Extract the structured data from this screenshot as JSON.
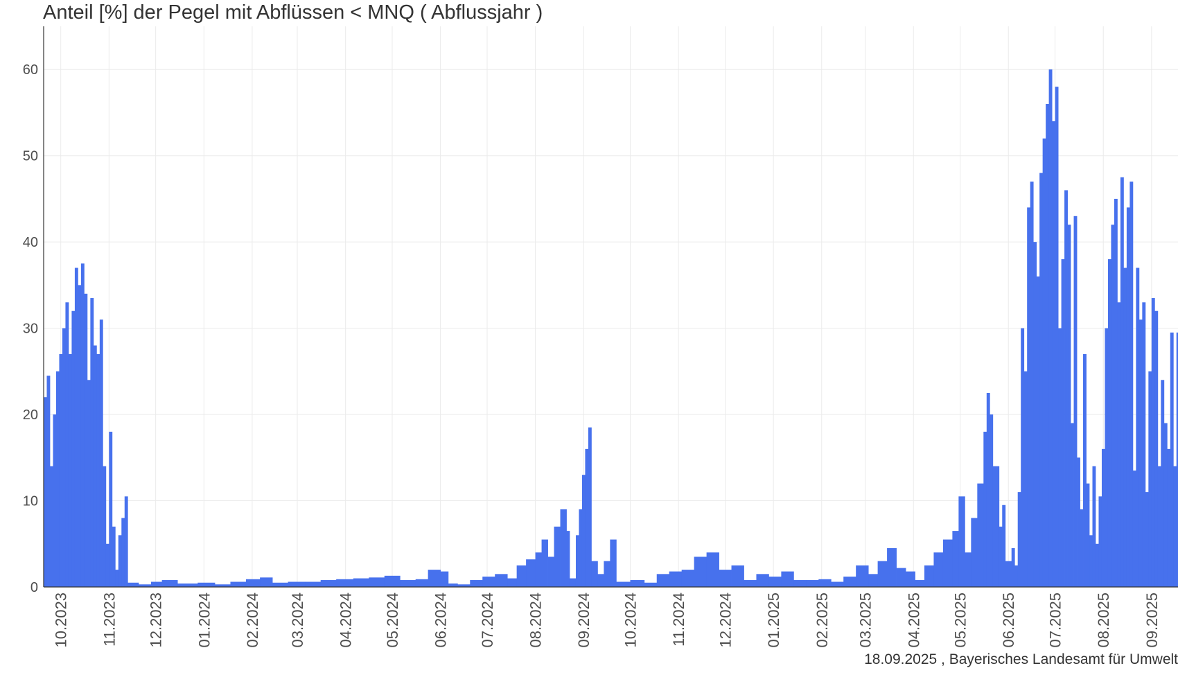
{
  "chart_data": {
    "type": "bar",
    "title": "Anteil [%] der Pegel mit Abflüssen < MNQ ( Abflussjahr )",
    "xlabel": "",
    "ylabel": "",
    "caption": "18.09.2025 , Bayerisches Landesamt für Umwelt",
    "x_range": [
      "2023-09-20",
      "2025-09-18"
    ],
    "ylim": [
      0,
      65
    ],
    "yticks": [
      0,
      10,
      20,
      30,
      40,
      50,
      60
    ],
    "grid": true,
    "legend": "none",
    "bar_color": "#4771ED",
    "xtick_labels": [
      "10.2023",
      "11.2023",
      "12.2023",
      "01.2024",
      "02.2024",
      "03.2024",
      "04.2024",
      "05.2024",
      "06.2024",
      "07.2024",
      "08.2024",
      "09.2024",
      "10.2024",
      "11.2024",
      "12.2024",
      "01.2025",
      "02.2025",
      "03.2025",
      "04.2025",
      "05.2025",
      "06.2025",
      "07.2025",
      "08.2025",
      "09.2025"
    ],
    "xtick_dates": [
      "2023-10-01",
      "2023-11-01",
      "2023-12-01",
      "2024-01-01",
      "2024-02-01",
      "2024-03-01",
      "2024-04-01",
      "2024-05-01",
      "2024-06-01",
      "2024-07-01",
      "2024-08-01",
      "2024-09-01",
      "2024-10-01",
      "2024-11-01",
      "2024-12-01",
      "2025-01-01",
      "2025-02-01",
      "2025-03-01",
      "2025-04-01",
      "2025-05-01",
      "2025-06-01",
      "2025-07-01",
      "2025-08-01",
      "2025-09-01"
    ],
    "series": [
      {
        "values": [
          {
            "date": "2023-09-20",
            "value": 22
          },
          {
            "date": "2023-09-22",
            "value": 24.5
          },
          {
            "date": "2023-09-24",
            "value": 14
          },
          {
            "date": "2023-09-26",
            "value": 20
          },
          {
            "date": "2023-09-28",
            "value": 25
          },
          {
            "date": "2023-09-30",
            "value": 27
          },
          {
            "date": "2023-10-02",
            "value": 30
          },
          {
            "date": "2023-10-04",
            "value": 33
          },
          {
            "date": "2023-10-06",
            "value": 27
          },
          {
            "date": "2023-10-08",
            "value": 32
          },
          {
            "date": "2023-10-10",
            "value": 37
          },
          {
            "date": "2023-10-12",
            "value": 35
          },
          {
            "date": "2023-10-14",
            "value": 37.5
          },
          {
            "date": "2023-10-16",
            "value": 34
          },
          {
            "date": "2023-10-18",
            "value": 24
          },
          {
            "date": "2023-10-20",
            "value": 33.5
          },
          {
            "date": "2023-10-22",
            "value": 28
          },
          {
            "date": "2023-10-24",
            "value": 27
          },
          {
            "date": "2023-10-26",
            "value": 31
          },
          {
            "date": "2023-10-28",
            "value": 14
          },
          {
            "date": "2023-10-30",
            "value": 5
          },
          {
            "date": "2023-11-01",
            "value": 18
          },
          {
            "date": "2023-11-03",
            "value": 7
          },
          {
            "date": "2023-11-05",
            "value": 2
          },
          {
            "date": "2023-11-07",
            "value": 6
          },
          {
            "date": "2023-11-09",
            "value": 8
          },
          {
            "date": "2023-11-11",
            "value": 10.5
          },
          {
            "date": "2023-11-13",
            "value": 0.5
          },
          {
            "date": "2023-11-20",
            "value": 0.3
          },
          {
            "date": "2023-11-28",
            "value": 0.6
          },
          {
            "date": "2023-12-05",
            "value": 0.8
          },
          {
            "date": "2023-12-15",
            "value": 0.4
          },
          {
            "date": "2023-12-28",
            "value": 0.5
          },
          {
            "date": "2024-01-08",
            "value": 0.3
          },
          {
            "date": "2024-01-18",
            "value": 0.6
          },
          {
            "date": "2024-01-28",
            "value": 0.9
          },
          {
            "date": "2024-02-06",
            "value": 1.1
          },
          {
            "date": "2024-02-14",
            "value": 0.5
          },
          {
            "date": "2024-02-24",
            "value": 0.6
          },
          {
            "date": "2024-03-06",
            "value": 0.6
          },
          {
            "date": "2024-03-16",
            "value": 0.8
          },
          {
            "date": "2024-03-26",
            "value": 0.9
          },
          {
            "date": "2024-04-06",
            "value": 1.0
          },
          {
            "date": "2024-04-16",
            "value": 1.1
          },
          {
            "date": "2024-04-26",
            "value": 1.3
          },
          {
            "date": "2024-05-06",
            "value": 0.8
          },
          {
            "date": "2024-05-16",
            "value": 0.9
          },
          {
            "date": "2024-05-24",
            "value": 2.0
          },
          {
            "date": "2024-06-01",
            "value": 1.8
          },
          {
            "date": "2024-06-06",
            "value": 0.4
          },
          {
            "date": "2024-06-12",
            "value": 0.3
          },
          {
            "date": "2024-06-20",
            "value": 0.8
          },
          {
            "date": "2024-06-28",
            "value": 1.2
          },
          {
            "date": "2024-07-06",
            "value": 1.5
          },
          {
            "date": "2024-07-14",
            "value": 1.0
          },
          {
            "date": "2024-07-20",
            "value": 2.5
          },
          {
            "date": "2024-07-26",
            "value": 3.2
          },
          {
            "date": "2024-08-01",
            "value": 4
          },
          {
            "date": "2024-08-05",
            "value": 5.5
          },
          {
            "date": "2024-08-09",
            "value": 3.5
          },
          {
            "date": "2024-08-13",
            "value": 7
          },
          {
            "date": "2024-08-17",
            "value": 9
          },
          {
            "date": "2024-08-21",
            "value": 6.5
          },
          {
            "date": "2024-08-23",
            "value": 1
          },
          {
            "date": "2024-08-27",
            "value": 6
          },
          {
            "date": "2024-08-29",
            "value": 9
          },
          {
            "date": "2024-08-31",
            "value": 13
          },
          {
            "date": "2024-09-02",
            "value": 16
          },
          {
            "date": "2024-09-04",
            "value": 18.5
          },
          {
            "date": "2024-09-06",
            "value": 3
          },
          {
            "date": "2024-09-10",
            "value": 1.5
          },
          {
            "date": "2024-09-14",
            "value": 3
          },
          {
            "date": "2024-09-18",
            "value": 5.5
          },
          {
            "date": "2024-09-22",
            "value": 0.6
          },
          {
            "date": "2024-10-01",
            "value": 0.8
          },
          {
            "date": "2024-10-10",
            "value": 0.5
          },
          {
            "date": "2024-10-18",
            "value": 1.5
          },
          {
            "date": "2024-10-26",
            "value": 1.8
          },
          {
            "date": "2024-11-03",
            "value": 2.0
          },
          {
            "date": "2024-11-11",
            "value": 3.5
          },
          {
            "date": "2024-11-19",
            "value": 4.0
          },
          {
            "date": "2024-11-27",
            "value": 2.0
          },
          {
            "date": "2024-12-05",
            "value": 2.5
          },
          {
            "date": "2024-12-13",
            "value": 0.8
          },
          {
            "date": "2024-12-21",
            "value": 1.5
          },
          {
            "date": "2024-12-29",
            "value": 1.2
          },
          {
            "date": "2025-01-06",
            "value": 1.8
          },
          {
            "date": "2025-01-14",
            "value": 0.8
          },
          {
            "date": "2025-01-22",
            "value": 0.8
          },
          {
            "date": "2025-01-30",
            "value": 0.9
          },
          {
            "date": "2025-02-07",
            "value": 0.6
          },
          {
            "date": "2025-02-15",
            "value": 1.2
          },
          {
            "date": "2025-02-23",
            "value": 2.5
          },
          {
            "date": "2025-03-03",
            "value": 1.5
          },
          {
            "date": "2025-03-09",
            "value": 3.0
          },
          {
            "date": "2025-03-15",
            "value": 4.5
          },
          {
            "date": "2025-03-21",
            "value": 2.2
          },
          {
            "date": "2025-03-27",
            "value": 1.8
          },
          {
            "date": "2025-04-02",
            "value": 0.8
          },
          {
            "date": "2025-04-08",
            "value": 2.5
          },
          {
            "date": "2025-04-14",
            "value": 4.0
          },
          {
            "date": "2025-04-20",
            "value": 5.5
          },
          {
            "date": "2025-04-26",
            "value": 6.5
          },
          {
            "date": "2025-04-30",
            "value": 10.5
          },
          {
            "date": "2025-05-04",
            "value": 4
          },
          {
            "date": "2025-05-08",
            "value": 8
          },
          {
            "date": "2025-05-12",
            "value": 12
          },
          {
            "date": "2025-05-16",
            "value": 18
          },
          {
            "date": "2025-05-18",
            "value": 22.5
          },
          {
            "date": "2025-05-20",
            "value": 20
          },
          {
            "date": "2025-05-22",
            "value": 14
          },
          {
            "date": "2025-05-26",
            "value": 7
          },
          {
            "date": "2025-05-28",
            "value": 9.5
          },
          {
            "date": "2025-05-30",
            "value": 3
          },
          {
            "date": "2025-06-03",
            "value": 4.5
          },
          {
            "date": "2025-06-05",
            "value": 2.5
          },
          {
            "date": "2025-06-07",
            "value": 11
          },
          {
            "date": "2025-06-09",
            "value": 30
          },
          {
            "date": "2025-06-11",
            "value": 25
          },
          {
            "date": "2025-06-13",
            "value": 44
          },
          {
            "date": "2025-06-15",
            "value": 47
          },
          {
            "date": "2025-06-17",
            "value": 40
          },
          {
            "date": "2025-06-19",
            "value": 36
          },
          {
            "date": "2025-06-21",
            "value": 48
          },
          {
            "date": "2025-06-23",
            "value": 52
          },
          {
            "date": "2025-06-25",
            "value": 56
          },
          {
            "date": "2025-06-27",
            "value": 60
          },
          {
            "date": "2025-06-29",
            "value": 54
          },
          {
            "date": "2025-07-01",
            "value": 58
          },
          {
            "date": "2025-07-03",
            "value": 30
          },
          {
            "date": "2025-07-05",
            "value": 38
          },
          {
            "date": "2025-07-07",
            "value": 46
          },
          {
            "date": "2025-07-09",
            "value": 42
          },
          {
            "date": "2025-07-11",
            "value": 19
          },
          {
            "date": "2025-07-13",
            "value": 43
          },
          {
            "date": "2025-07-15",
            "value": 15
          },
          {
            "date": "2025-07-17",
            "value": 9
          },
          {
            "date": "2025-07-19",
            "value": 27
          },
          {
            "date": "2025-07-21",
            "value": 12
          },
          {
            "date": "2025-07-23",
            "value": 6
          },
          {
            "date": "2025-07-25",
            "value": 14
          },
          {
            "date": "2025-07-27",
            "value": 5
          },
          {
            "date": "2025-07-29",
            "value": 10.5
          },
          {
            "date": "2025-07-31",
            "value": 16
          },
          {
            "date": "2025-08-02",
            "value": 30
          },
          {
            "date": "2025-08-04",
            "value": 38
          },
          {
            "date": "2025-08-06",
            "value": 42
          },
          {
            "date": "2025-08-08",
            "value": 45
          },
          {
            "date": "2025-08-10",
            "value": 33
          },
          {
            "date": "2025-08-12",
            "value": 47.5
          },
          {
            "date": "2025-08-14",
            "value": 37
          },
          {
            "date": "2025-08-16",
            "value": 44
          },
          {
            "date": "2025-08-18",
            "value": 47
          },
          {
            "date": "2025-08-20",
            "value": 13.5
          },
          {
            "date": "2025-08-22",
            "value": 37
          },
          {
            "date": "2025-08-24",
            "value": 31
          },
          {
            "date": "2025-08-26",
            "value": 33
          },
          {
            "date": "2025-08-28",
            "value": 11
          },
          {
            "date": "2025-08-30",
            "value": 25
          },
          {
            "date": "2025-09-01",
            "value": 33.5
          },
          {
            "date": "2025-09-03",
            "value": 32
          },
          {
            "date": "2025-09-05",
            "value": 14
          },
          {
            "date": "2025-09-07",
            "value": 24
          },
          {
            "date": "2025-09-09",
            "value": 19
          },
          {
            "date": "2025-09-11",
            "value": 16
          },
          {
            "date": "2025-09-13",
            "value": 29.5
          },
          {
            "date": "2025-09-15",
            "value": 14
          },
          {
            "date": "2025-09-17",
            "value": 29.5
          }
        ]
      }
    ]
  }
}
